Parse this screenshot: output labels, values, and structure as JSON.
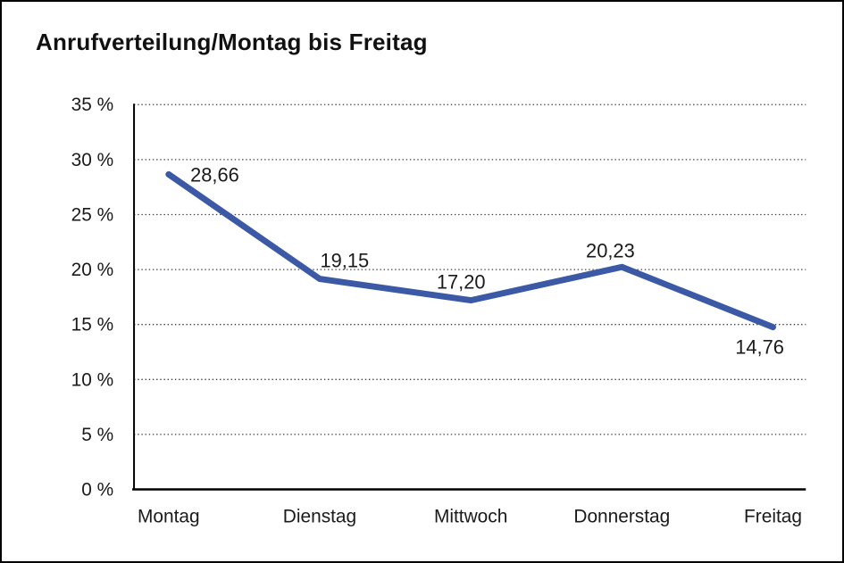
{
  "window": {
    "background_color": "#ffffff",
    "border_color": "#000000"
  },
  "chart_data": {
    "type": "line",
    "title": "Anrufverteilung/Montag bis Freitag",
    "categories": [
      "Montag",
      "Dienstag",
      "Mittwoch",
      "Donnerstag",
      "Freitag"
    ],
    "series": [
      {
        "name": "Anrufverteilung",
        "values": [
          28.66,
          19.15,
          17.2,
          20.23,
          14.76
        ],
        "color": "#3B59A5"
      }
    ],
    "data_labels": [
      "28,66",
      "19,15",
      "17,20",
      "20,23",
      "14,76"
    ],
    "xlabel": "",
    "ylabel": "",
    "ylim": [
      0,
      35
    ],
    "y_ticks": [
      {
        "value": 0,
        "label": "0 %"
      },
      {
        "value": 5,
        "label": "5 %"
      },
      {
        "value": 10,
        "label": "10 %"
      },
      {
        "value": 15,
        "label": "15 %"
      },
      {
        "value": 20,
        "label": "20 %"
      },
      {
        "value": 25,
        "label": "25 %"
      },
      {
        "value": 30,
        "label": "30 %"
      },
      {
        "value": 35,
        "label": "35 %"
      }
    ],
    "grid": "horizontal-dotted",
    "gridline_color": "#3c3c3c",
    "axis_color": "#000000",
    "text_color": "#1a1a1a",
    "legend": "none"
  }
}
